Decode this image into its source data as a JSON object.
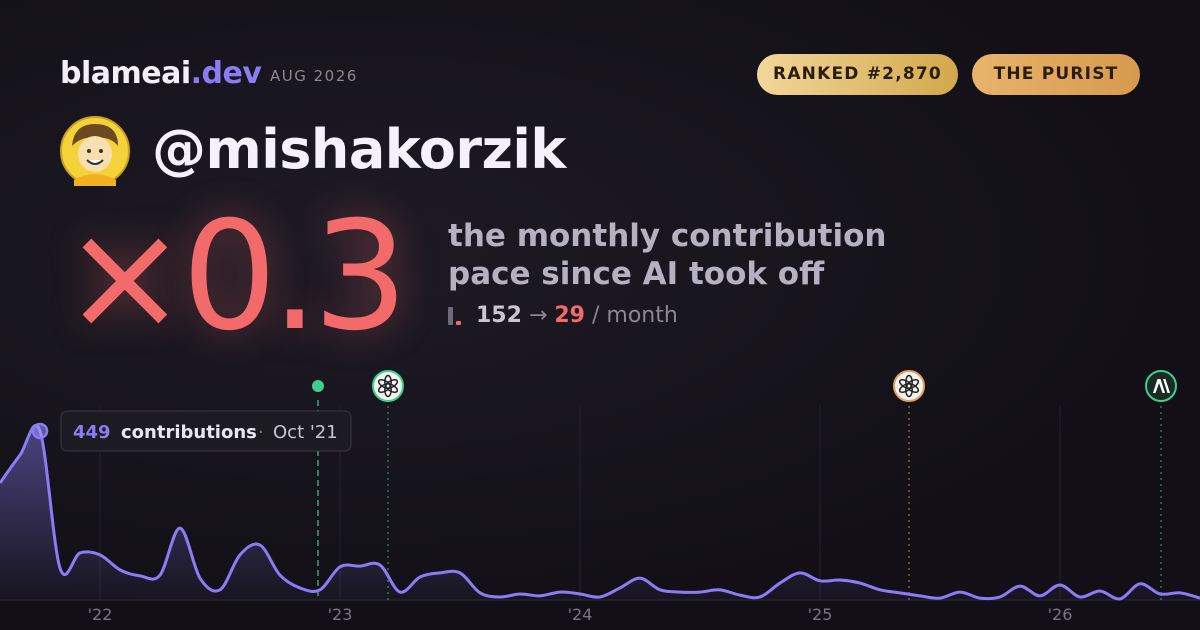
{
  "header": {
    "brand": "blameai",
    "brand_tld": ".dev",
    "period": "AUG 2026"
  },
  "badges": [
    "RANKED #2,870",
    "THE PURIST"
  ],
  "handle": "@mishakorzik",
  "headline": {
    "multiplier": "×0.3",
    "lines": [
      "the monthly contribution",
      "pace since AI took off"
    ],
    "before": 152,
    "arrow": "→",
    "after": 29,
    "unit": "/ month"
  },
  "chart_data": {
    "type": "area",
    "color": "#8b7cf6",
    "categories": [
      null,
      null,
      null,
      null,
      null,
      "'22",
      null,
      null,
      null,
      null,
      null,
      null,
      null,
      null,
      null,
      null,
      null,
      "'23",
      null,
      null,
      null,
      null,
      null,
      null,
      null,
      null,
      null,
      null,
      null,
      "'24",
      null,
      null,
      null,
      null,
      null,
      null,
      null,
      null,
      null,
      null,
      null,
      "'25",
      null,
      null,
      null,
      null,
      null,
      null,
      null,
      null,
      null,
      null,
      null,
      "'26",
      null,
      null,
      null,
      null,
      null,
      null,
      null
    ],
    "values": [
      311,
      385,
      449,
      85,
      125,
      120,
      80,
      64,
      66,
      191,
      58,
      27,
      120,
      146,
      66,
      32,
      27,
      88,
      90,
      93,
      21,
      61,
      72,
      72,
      19,
      8,
      16,
      11,
      21,
      16,
      8,
      32,
      58,
      27,
      21,
      21,
      27,
      13,
      8,
      45,
      72,
      51,
      53,
      45,
      27,
      19,
      11,
      5,
      21,
      5,
      8,
      37,
      11,
      40,
      8,
      24,
      3,
      43,
      16,
      19,
      5
    ],
    "ylim": [
      0,
      480
    ],
    "grid": true,
    "tooltip": {
      "index": 2,
      "label": "contributions",
      "sep": "·",
      "date": "Oct '21"
    },
    "events": [
      {
        "x": 15.9,
        "color": "#3ecf8e",
        "marker": "dot"
      },
      {
        "x": 19.4,
        "color": "#3ecf8e",
        "marker": "openai"
      },
      {
        "x": 45.45,
        "color": "#e0a060",
        "marker": "openai"
      },
      {
        "x": 58.05,
        "color": "#3ecf8e",
        "marker": "anthropic"
      }
    ]
  }
}
